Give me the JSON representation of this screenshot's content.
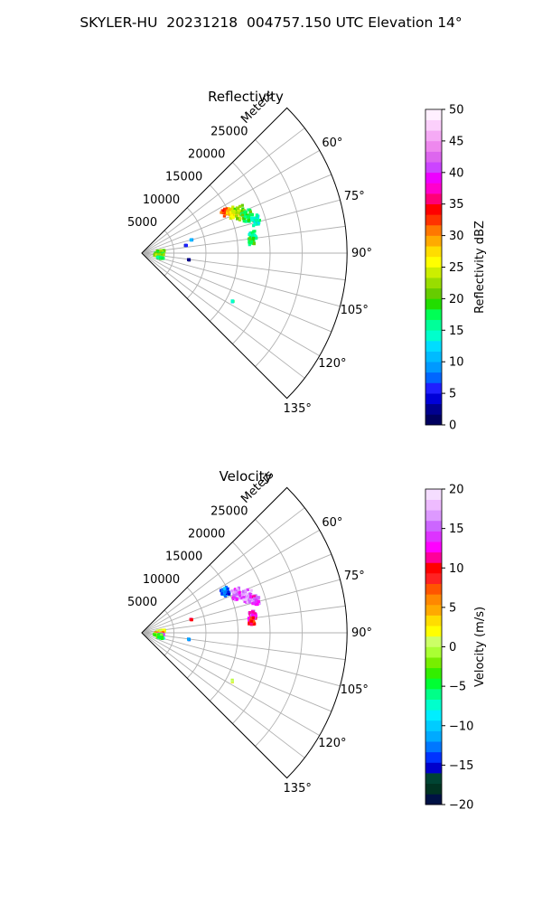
{
  "title": "SKYLER-HU  20231218  004757.150 UTC Elevation 14°",
  "colors": {
    "grid": "#b0b0b0",
    "axis": "#000000",
    "reflectivity_cmap": [
      "#00005f",
      "#00008f",
      "#0000d8",
      "#1f1fff",
      "#0066ff",
      "#0099ff",
      "#00bbff",
      "#00ddff",
      "#00ffcc",
      "#00ff99",
      "#00ff55",
      "#22dd00",
      "#66cc00",
      "#99dd00",
      "#ccee00",
      "#ffff00",
      "#ffdd00",
      "#ffaa00",
      "#ff7700",
      "#ff3300",
      "#ff0000",
      "#ff0077",
      "#ff00cc",
      "#ee00ff",
      "#cc44ff",
      "#dd66ee",
      "#ee88ee",
      "#f5aaf5",
      "#fcd0fc",
      "#fff0ff"
    ],
    "velocity_cmap": [
      "#001144",
      "#003322",
      "#004433",
      "#0000cc",
      "#0033ff",
      "#0077ff",
      "#00aaff",
      "#00ccff",
      "#00eeff",
      "#00ffcc",
      "#00ff88",
      "#00ff33",
      "#33ee00",
      "#77ee00",
      "#aaff33",
      "#ccff66",
      "#ffff00",
      "#ffdd00",
      "#ffaa00",
      "#ff8800",
      "#ff5500",
      "#ff2222",
      "#ff0000",
      "#ff0099",
      "#ff00ff",
      "#dd33ff",
      "#cc66ff",
      "#dd99ff",
      "#eebbff",
      "#f5ddff"
    ]
  },
  "chart_data": [
    {
      "type": "heatmap",
      "subplot": "ppi",
      "title": "Reflectivity",
      "range_label": "Meters",
      "range_ticks": [
        5000,
        10000,
        15000,
        20000,
        25000
      ],
      "range_tick_labels": [
        "5000",
        "10000",
        "15000",
        "20000",
        "25000"
      ],
      "azimuth_ticks": [
        60,
        75,
        90,
        105,
        120,
        135
      ],
      "azimuth_tick_labels": [
        "60°",
        "75°",
        "90°",
        "105°",
        "120°",
        "135°"
      ],
      "azimuth_range": [
        45,
        135
      ],
      "range_max": 32000,
      "grid": true,
      "colorbar": {
        "label": "Reflectivity dBZ",
        "vmin": 0,
        "vmax": 50,
        "ticks": [
          0,
          5,
          10,
          15,
          20,
          25,
          30,
          35,
          40,
          45,
          50
        ],
        "tick_labels": [
          "0",
          "5",
          "10",
          "15",
          "20",
          "25",
          "30",
          "35",
          "40",
          "45",
          "50"
        ]
      },
      "echoes": [
        {
          "az": 64,
          "r": 14500,
          "value": 32,
          "spread": 1200
        },
        {
          "az": 66,
          "r": 15500,
          "value": 27,
          "spread": 1500
        },
        {
          "az": 68,
          "r": 16500,
          "value": 22,
          "spread": 1800
        },
        {
          "az": 71,
          "r": 17500,
          "value": 18,
          "spread": 1600
        },
        {
          "az": 74,
          "r": 18500,
          "value": 15,
          "spread": 1200
        },
        {
          "az": 81,
          "r": 17500,
          "value": 15,
          "spread": 1000
        },
        {
          "az": 84,
          "r": 17200,
          "value": 18,
          "spread": 900
        },
        {
          "az": 85,
          "r": 3000,
          "value": 22,
          "spread": 1200
        },
        {
          "az": 92,
          "r": 2800,
          "value": 20,
          "spread": 1400
        },
        {
          "az": 98,
          "r": 2600,
          "value": 22,
          "spread": 1300
        },
        {
          "az": 104,
          "r": 3000,
          "value": 18,
          "spread": 1000
        },
        {
          "az": 118,
          "r": 16000,
          "value": 14,
          "spread": 200
        },
        {
          "az": 75,
          "r": 8000,
          "value": 10,
          "spread": 200
        },
        {
          "az": 80,
          "r": 7000,
          "value": 5,
          "spread": 200
        },
        {
          "az": 98,
          "r": 7400,
          "value": 3,
          "spread": 200
        }
      ]
    },
    {
      "type": "heatmap",
      "subplot": "ppi",
      "title": "Velocity",
      "range_label": "Meters",
      "range_ticks": [
        5000,
        10000,
        15000,
        20000,
        25000
      ],
      "range_tick_labels": [
        "5000",
        "10000",
        "15000",
        "20000",
        "25000"
      ],
      "azimuth_ticks": [
        60,
        75,
        90,
        105,
        120,
        135
      ],
      "azimuth_tick_labels": [
        "60°",
        "75°",
        "90°",
        "105°",
        "120°",
        "135°"
      ],
      "azimuth_range": [
        45,
        135
      ],
      "range_max": 32000,
      "grid": true,
      "colorbar": {
        "label": "Velocity (m/s)",
        "vmin": -20,
        "vmax": 20,
        "ticks": [
          -20,
          -15,
          -10,
          -5,
          0,
          5,
          10,
          15,
          20
        ],
        "tick_labels": [
          "−20",
          "−15",
          "−10",
          "−5",
          "0",
          "5",
          "10",
          "15",
          "20"
        ]
      },
      "echoes": [
        {
          "az": 64,
          "r": 14500,
          "value": -13,
          "spread": 1200
        },
        {
          "az": 68,
          "r": 16000,
          "value": 15,
          "spread": 1500
        },
        {
          "az": 71,
          "r": 17500,
          "value": 16,
          "spread": 1600
        },
        {
          "az": 74,
          "r": 18500,
          "value": 14,
          "spread": 1200
        },
        {
          "az": 81,
          "r": 17500,
          "value": 13,
          "spread": 1000
        },
        {
          "az": 84,
          "r": 17200,
          "value": 10,
          "spread": 900
        },
        {
          "az": 85,
          "r": 3000,
          "value": 1,
          "spread": 1200
        },
        {
          "az": 92,
          "r": 2800,
          "value": 6,
          "spread": 1400
        },
        {
          "az": 95,
          "r": 3000,
          "value": 15,
          "spread": 900
        },
        {
          "az": 98,
          "r": 2600,
          "value": -3,
          "spread": 1300
        },
        {
          "az": 104,
          "r": 3000,
          "value": -5,
          "spread": 1000
        },
        {
          "az": 118,
          "r": 16000,
          "value": 1,
          "spread": 200
        },
        {
          "az": 75,
          "r": 8000,
          "value": 10,
          "spread": 200
        },
        {
          "az": 98,
          "r": 7400,
          "value": -12,
          "spread": 200
        }
      ]
    }
  ]
}
